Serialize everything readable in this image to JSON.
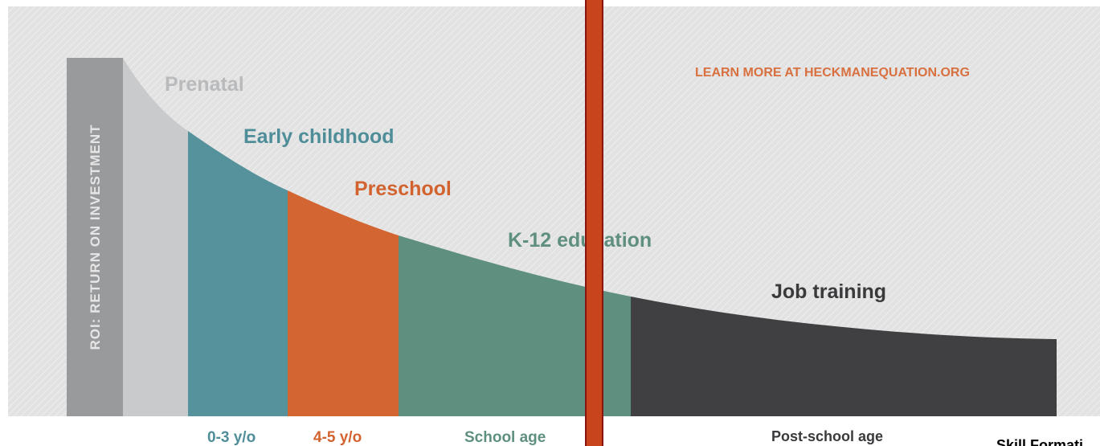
{
  "axis_label": "ROI: RETURN ON INVESTMENT",
  "link_text": "LEARN MORE AT HECKMANEQUATION.ORG",
  "stages": [
    {
      "name": "Prenatal"
    },
    {
      "name": "Early childhood",
      "age": "0-3 y/o"
    },
    {
      "name": "Preschool",
      "age": "4-5 y/o"
    },
    {
      "name": "K-12 education",
      "age": "School age"
    },
    {
      "name": "Job training",
      "age": "Post-school age"
    }
  ],
  "footer": "Skill Formati"
}
